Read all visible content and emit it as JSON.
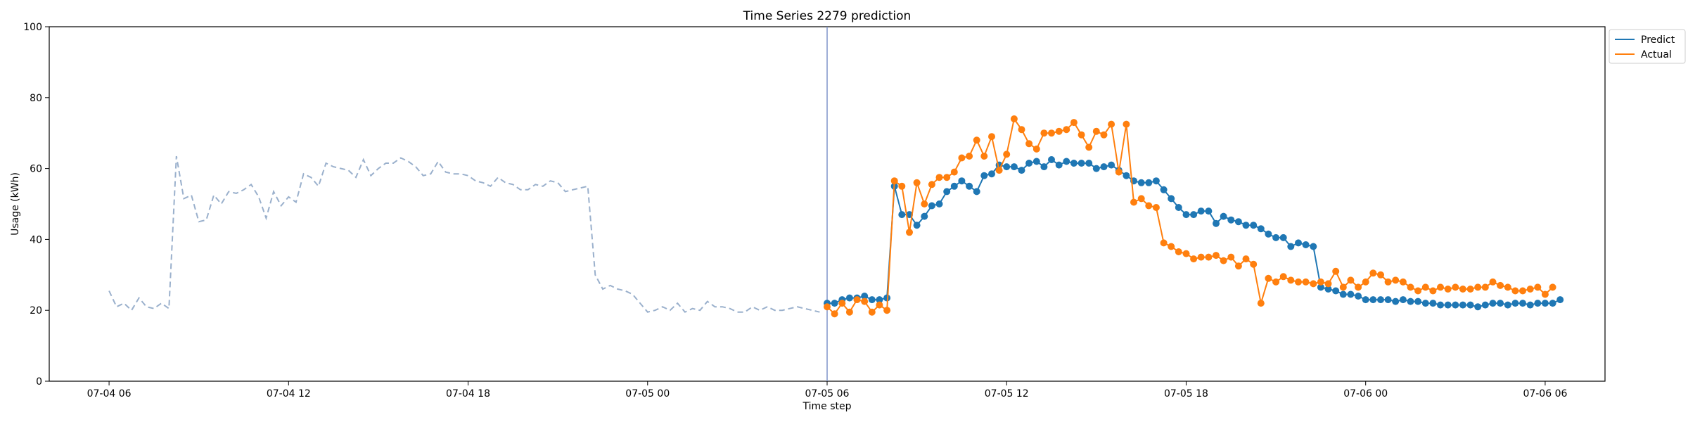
{
  "chart_data": {
    "type": "line",
    "title": "Time Series 2279 prediction",
    "xlabel": "Time step",
    "ylabel": "Usage (kWh)",
    "ylim": [
      0,
      100
    ],
    "xlim": [
      "2024-07-04T04:00",
      "2024-07-06T08:00"
    ],
    "yticks": [
      0,
      20,
      40,
      60,
      80,
      100
    ],
    "xticks": [
      {
        "t": "2024-07-04T06:00",
        "label": "07-04 06"
      },
      {
        "t": "2024-07-04T12:00",
        "label": "07-04 12"
      },
      {
        "t": "2024-07-04T18:00",
        "label": "07-04 18"
      },
      {
        "t": "2024-07-05T00:00",
        "label": "07-05 00"
      },
      {
        "t": "2024-07-05T06:00",
        "label": "07-05 06"
      },
      {
        "t": "2024-07-05T12:00",
        "label": "07-05 12"
      },
      {
        "t": "2024-07-05T18:00",
        "label": "07-05 18"
      },
      {
        "t": "2024-07-06T00:00",
        "label": "07-06 00"
      },
      {
        "t": "2024-07-06T06:00",
        "label": "07-06 06"
      }
    ],
    "legend_placement": "top-right",
    "grid": false,
    "vline": {
      "t": "2024-07-05T06:00",
      "color": "#7f93c8"
    },
    "history": {
      "start": "2024-07-04T06:00",
      "step_minutes": 15,
      "color": "#9ab0cc",
      "style": "dashed",
      "values": [
        25.5,
        21,
        22,
        20,
        23.5,
        21,
        20.5,
        22,
        20.5,
        63.5,
        51.5,
        52.5,
        45,
        45.5,
        52.5,
        50,
        53.5,
        53,
        54,
        55.5,
        52,
        46,
        53.5,
        49.5,
        52,
        50.5,
        58.5,
        57.5,
        55,
        61.5,
        60.5,
        60,
        59.5,
        57.5,
        62.5,
        58,
        60,
        61.5,
        61.5,
        63,
        62,
        60.5,
        58,
        58.5,
        62,
        59,
        58.5,
        58.5,
        58,
        56.5,
        56,
        55,
        57.5,
        56,
        55.5,
        54,
        54,
        55.5,
        55,
        56.5,
        56,
        53.5,
        54,
        54.5,
        55,
        30,
        26,
        27,
        26,
        25.5,
        24.5,
        22,
        19.5,
        20,
        21,
        20,
        22,
        19.5,
        20.5,
        20,
        22.5,
        21,
        21,
        20.5,
        19.5,
        19.5,
        21,
        20,
        21,
        20,
        20,
        20.5,
        21,
        20.5,
        20,
        19.5
      ]
    },
    "series": [
      {
        "name": "Predict",
        "color": "#1f77b4",
        "start": "2024-07-05T06:00",
        "step_minutes": 15,
        "values": [
          22,
          22,
          23,
          23.5,
          23.5,
          24,
          23,
          23,
          23.5,
          55,
          47,
          47,
          44,
          46.5,
          49.5,
          50,
          53.5,
          55,
          56.5,
          55,
          53.5,
          58,
          58.5,
          61,
          60.5,
          60.5,
          59.5,
          61.5,
          62,
          60.5,
          62.5,
          61,
          62,
          61.5,
          61.5,
          61.5,
          60,
          60.5,
          61,
          59.5,
          58,
          56.5,
          56,
          56,
          56.5,
          54,
          51.5,
          49,
          47,
          47,
          48,
          48,
          44.5,
          46.5,
          45.5,
          45,
          44,
          44,
          43,
          41.5,
          40.5,
          40.5,
          38,
          39,
          38.5,
          38,
          26.5,
          26,
          25.5,
          24.5,
          24.5,
          24,
          23,
          23,
          23,
          23,
          22.5,
          23,
          22.5,
          22.5,
          22,
          22,
          21.5,
          21.5,
          21.5,
          21.5,
          21.5,
          21,
          21.5,
          22,
          22,
          21.5,
          22,
          22,
          21.5,
          22,
          22,
          22,
          23
        ]
      },
      {
        "name": "Actual",
        "color": "#ff7f0e",
        "start": "2024-07-05T06:00",
        "step_minutes": 15,
        "values": [
          21,
          19,
          22,
          19.5,
          23,
          22.5,
          19.5,
          21.5,
          20,
          56.5,
          55,
          42,
          56,
          50,
          55.5,
          57.5,
          57.5,
          59,
          63,
          63.5,
          68,
          63.5,
          69,
          59.5,
          64,
          74,
          71,
          67,
          65.5,
          70,
          70,
          70.5,
          71,
          73,
          69.5,
          66,
          70.5,
          69.5,
          72.5,
          59,
          72.5,
          50.5,
          51.5,
          49.5,
          49,
          39,
          38,
          36.5,
          36,
          34.5,
          35,
          35,
          35.5,
          34,
          35,
          32.5,
          34.5,
          33,
          22,
          29,
          28,
          29.5,
          28.5,
          28,
          28,
          27.5,
          28,
          27.5,
          31,
          26.5,
          28.5,
          26.5,
          28,
          30.5,
          30,
          28,
          28.5,
          28,
          26.5,
          25.5,
          26.5,
          25.5,
          26.5,
          26,
          26.5,
          26,
          26,
          26.5,
          26.5,
          28,
          27,
          26.5,
          25.5,
          25.5,
          26,
          26.5,
          24.5,
          26.5
        ]
      }
    ]
  }
}
